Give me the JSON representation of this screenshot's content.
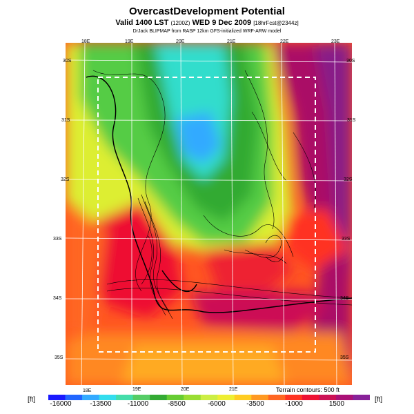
{
  "header": {
    "title": "OvercastDevelopment Potential",
    "subtitle_main": "Valid 1400 LST",
    "subtitle_small1": "(1200Z)",
    "subtitle_date": "WED 9 Dec 2009",
    "subtitle_small2": "[18hrFcst@2344z]",
    "model": "DrJack BLIPMAP from RASP 12km GFS-initialized WRF-ARW model"
  },
  "map": {
    "lon_labels_top": [
      "18E",
      "19E",
      "20E",
      "21E",
      "22E",
      "23E"
    ],
    "lon_labels_bottom": [
      "18E",
      "19E",
      "20E",
      "21E"
    ],
    "lat_labels_left": [
      "30S",
      "31S",
      "32S",
      "33S",
      "34S",
      "35S"
    ],
    "lat_labels_right": [
      "30S",
      "31S",
      "32S",
      "33S",
      "34S",
      "35S"
    ],
    "terrain_contours": "Terrain contours: 500 ft"
  },
  "colorbar": {
    "unit": "[ft]",
    "ticks": [
      "-16000",
      "-13500",
      "-11000",
      "-8500",
      "-6000",
      "-3500",
      "-1000",
      "1500"
    ],
    "colors": [
      "#1a1aff",
      "#2266ff",
      "#33aaff",
      "#33ddee",
      "#44ddaa",
      "#55cc66",
      "#33aa33",
      "#66cc33",
      "#99dd33",
      "#ccee44",
      "#eeee33",
      "#ffcc22",
      "#ff9922",
      "#ff6622",
      "#ff3322",
      "#ee1133",
      "#cc1155",
      "#aa1177",
      "#882299"
    ]
  }
}
